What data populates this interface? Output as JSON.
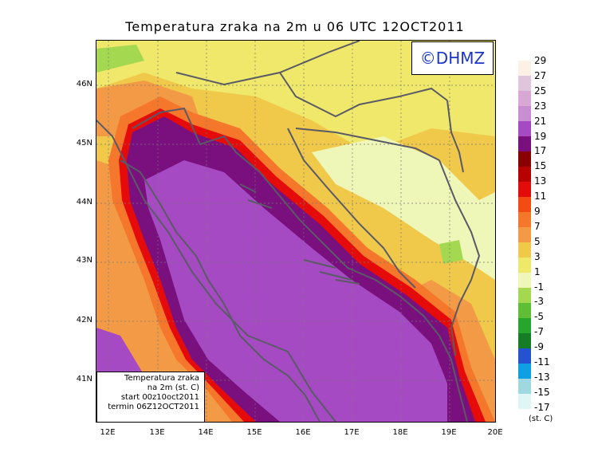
{
  "title": "Temperatura zraka na 2m u 06 UTC 12OCT2011",
  "logo": "©DHMZ",
  "latitude_labels": [
    "46N",
    "45N",
    "44N",
    "43N",
    "42N",
    "41N"
  ],
  "longitude_labels": [
    "12E",
    "13E",
    "14E",
    "15E",
    "16E",
    "17E",
    "18E",
    "19E",
    "20E"
  ],
  "legend_box": {
    "line1": "Temperatura zraka",
    "line2": "na 2m (st. C)",
    "line3": "start 00z10oct2011",
    "line4": "termin 06Z12OCT2011"
  },
  "colorbar": {
    "labels": [
      "29",
      "27",
      "25",
      "23",
      "21",
      "19",
      "17",
      "15",
      "13",
      "11",
      "9",
      "7",
      "5",
      "3",
      "1",
      "-1",
      "-3",
      "-5",
      "-7",
      "-9",
      "-11",
      "-13",
      "-15",
      "-17"
    ],
    "colors": [
      "#fdf0e4",
      "#e0c6dc",
      "#d9a7d5",
      "#c78ed1",
      "#a64ac3",
      "#7a0f7e",
      "#8a0000",
      "#b80000",
      "#e60b0b",
      "#f44a14",
      "#f4772b",
      "#f29a45",
      "#f0c94a",
      "#f0e86a",
      "#eef7b8",
      "#a4d850",
      "#5fbe35",
      "#27a52c",
      "#167d27",
      "#2552d3",
      "#0fa0e3",
      "#9fd8e0",
      "#dff5f6"
    ],
    "units": "(st. C)"
  }
}
